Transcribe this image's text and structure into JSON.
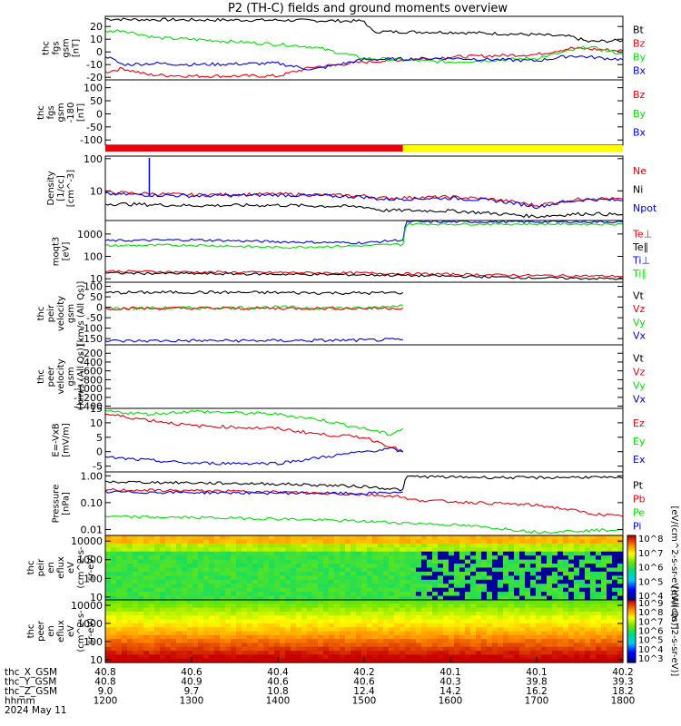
{
  "title": "P2 (TH-C) fields and ground moments overview",
  "colors": {
    "black": "#000000",
    "red": "#e8000b",
    "green": "#00e000",
    "blue": "#0000e0",
    "yellow": "#ffff00"
  },
  "chart_data": [
    {
      "type": "line",
      "ylabel_lines": [
        "thc",
        "fgs",
        "gsm",
        "[nT]"
      ],
      "yticks": [
        "20",
        "10",
        "0",
        "-10",
        "-20"
      ],
      "ylim": [
        -22,
        28
      ],
      "legend": [
        {
          "label": "Bt",
          "color": "black"
        },
        {
          "label": "Bz",
          "color": "red"
        },
        {
          "label": "By",
          "color": "green"
        },
        {
          "label": "Bx",
          "color": "blue"
        }
      ],
      "series": [
        {
          "name": "Bt",
          "color": "black",
          "x": [
            1200,
            1230,
            1300,
            1400,
            1500,
            1510,
            1600,
            1700,
            1740,
            1760,
            1800
          ],
          "y": [
            26,
            25.5,
            25.2,
            25,
            24.2,
            16,
            15.5,
            13.5,
            12,
            8,
            9
          ]
        },
        {
          "name": "Bz",
          "color": "red",
          "x": [
            1200,
            1220,
            1250,
            1300,
            1400,
            1440,
            1500,
            1600,
            1700,
            1740,
            1800
          ],
          "y": [
            -16,
            -13,
            -18,
            -19,
            -19,
            -12,
            -8,
            -4,
            -2,
            3,
            1
          ]
        },
        {
          "name": "By",
          "color": "green",
          "x": [
            1200,
            1220,
            1260,
            1300,
            1400,
            1440,
            1500,
            1600,
            1700,
            1760,
            1800
          ],
          "y": [
            16,
            17,
            11,
            10,
            6,
            4,
            -5,
            -8,
            -5,
            4,
            -2
          ]
        },
        {
          "name": "Bx",
          "color": "blue",
          "x": [
            1200,
            1220,
            1260,
            1300,
            1400,
            1440,
            1500,
            1600,
            1700,
            1740,
            1800
          ],
          "y": [
            -3,
            -10,
            -9,
            -10,
            -9,
            -14,
            -6,
            -5,
            -7,
            -3,
            -6
          ]
        }
      ]
    },
    {
      "type": "line",
      "ylabel_lines": [
        "thc",
        "fgs",
        "gsm",
        "-180",
        "[nT]"
      ],
      "yticks": [
        "100",
        "50",
        "0",
        "-50",
        "-100"
      ],
      "ylim": [
        -120,
        130
      ],
      "legend": [
        {
          "label": "Bz",
          "color": "red"
        },
        {
          "label": "By",
          "color": "green"
        },
        {
          "label": "Bx",
          "color": "blue"
        }
      ],
      "series": []
    },
    {
      "type": "line",
      "ylabel_lines": [
        "Density",
        "[1/cc]",
        "[cm^-3]"
      ],
      "yticks": [
        "100",
        "10"
      ],
      "yscale": "log",
      "ylim": [
        1.2,
        120
      ],
      "legend": [
        {
          "label": "Ne",
          "color": "red"
        },
        {
          "label": "Ni",
          "color": "black"
        },
        {
          "label": "Npot",
          "color": "blue"
        }
      ],
      "series": [
        {
          "name": "Ne",
          "color": "red",
          "x": [
            1200,
            1300,
            1400,
            1500,
            1520,
            1600,
            1650,
            1700,
            1760,
            1800
          ],
          "y": [
            9,
            7.5,
            8,
            7,
            6,
            6.5,
            5.5,
            3.5,
            6,
            5.5
          ]
        },
        {
          "name": "Npot",
          "color": "blue",
          "x": [
            1200,
            1300,
            1400,
            1500,
            1520,
            1600,
            1650,
            1700,
            1760,
            1800
          ],
          "y": [
            8,
            7,
            7.5,
            6.5,
            5.5,
            6,
            5,
            3.2,
            5.5,
            5
          ]
        },
        {
          "name": "Ni",
          "color": "black",
          "x": [
            1200,
            1300,
            1400,
            1500,
            1520,
            1600,
            1650,
            1700,
            1760,
            1800
          ],
          "y": [
            4,
            3.5,
            3.6,
            3.2,
            2.5,
            2.4,
            2.0,
            1.6,
            2.0,
            1.8
          ]
        }
      ]
    },
    {
      "type": "line",
      "ylabel_lines": [
        "moqt3",
        "[eV]"
      ],
      "yticks": [
        "1000",
        "100",
        "10"
      ],
      "yscale": "log",
      "ylim": [
        7,
        4000
      ],
      "legend": [
        {
          "label": "Te⊥",
          "color": "red"
        },
        {
          "label": "Te∥",
          "color": "black"
        },
        {
          "label": "Ti⊥",
          "color": "blue"
        },
        {
          "label": "Ti∥",
          "color": "green"
        }
      ],
      "series": [
        {
          "name": "Ti⊥",
          "color": "blue",
          "x": [
            1200,
            1300,
            1400,
            1500,
            1545,
            1550,
            1800
          ],
          "y": [
            500,
            550,
            450,
            400,
            550,
            3500,
            3500
          ]
        },
        {
          "name": "Ti∥",
          "color": "green",
          "x": [
            1200,
            1300,
            1400,
            1500,
            1545,
            1550,
            1800
          ],
          "y": [
            300,
            320,
            250,
            300,
            350,
            2800,
            2800
          ]
        },
        {
          "name": "Te⊥",
          "color": "red",
          "x": [
            1200,
            1300,
            1400,
            1500,
            1600,
            1700,
            1800
          ],
          "y": [
            22,
            20,
            19,
            18,
            16,
            14,
            13
          ]
        },
        {
          "name": "Te∥",
          "color": "black",
          "x": [
            1200,
            1300,
            1400,
            1500,
            1600,
            1700,
            1800
          ],
          "y": [
            18,
            17,
            16,
            15,
            13,
            11,
            10
          ]
        }
      ]
    },
    {
      "type": "line",
      "ylabel_lines": [
        "thc",
        "peir",
        "velocity",
        "gsm",
        "[km/s (All Qs)]"
      ],
      "yticks": [
        "100",
        "50",
        "0",
        "-50",
        "-100",
        "-150"
      ],
      "ylim": [
        -180,
        120
      ],
      "legend": [
        {
          "label": "Vt",
          "color": "black"
        },
        {
          "label": "Vz",
          "color": "red"
        },
        {
          "label": "Vy",
          "color": "green"
        },
        {
          "label": "Vx",
          "color": "blue"
        }
      ],
      "series": [
        {
          "name": "Vt",
          "color": "black",
          "x": [
            1200,
            1300,
            1400,
            1500,
            1545
          ],
          "y": [
            70,
            72,
            70,
            68,
            70
          ]
        },
        {
          "name": "Vy",
          "color": "green",
          "x": [
            1200,
            1300,
            1400,
            1500,
            1530,
            1545
          ],
          "y": [
            -5,
            -3,
            0,
            -5,
            5,
            10
          ]
        },
        {
          "name": "Vz",
          "color": "red",
          "x": [
            1200,
            1300,
            1400,
            1500,
            1545
          ],
          "y": [
            -5,
            -5,
            -5,
            -5,
            -3
          ]
        },
        {
          "name": "Vx",
          "color": "blue",
          "x": [
            1200,
            1300,
            1400,
            1500,
            1545
          ],
          "y": [
            -162,
            -160,
            -160,
            -158,
            -155
          ]
        }
      ]
    },
    {
      "type": "line",
      "ylabel_lines": [
        "thc",
        "peer",
        "velocity",
        "gsm",
        "[km/s (All Qs)]"
      ],
      "yticks": [
        "-200",
        "-400",
        "-600",
        "-800",
        "-1000",
        "-1200",
        "-1400"
      ],
      "ylim": [
        -1450,
        -10
      ],
      "legend": [
        {
          "label": "Vt",
          "color": "black"
        },
        {
          "label": "Vz",
          "color": "red"
        },
        {
          "label": "Vy",
          "color": "green"
        },
        {
          "label": "Vx",
          "color": "blue"
        }
      ],
      "series": []
    },
    {
      "type": "line",
      "ylabel_lines": [
        "E=-VxB",
        "[mV/m]"
      ],
      "yticks": [
        "15",
        "10",
        "5",
        "0",
        "-5"
      ],
      "ylim": [
        -7,
        15
      ],
      "legend": [
        {
          "label": "Ez",
          "color": "red"
        },
        {
          "label": "Ey",
          "color": "green"
        },
        {
          "label": "Ex",
          "color": "blue"
        }
      ],
      "series": [
        {
          "name": "Ey",
          "color": "green",
          "x": [
            1200,
            1250,
            1300,
            1400,
            1450,
            1500,
            1530,
            1545
          ],
          "y": [
            14,
            13,
            14,
            13,
            11,
            8,
            6,
            8
          ]
        },
        {
          "name": "Ez",
          "color": "red",
          "x": [
            1200,
            1250,
            1300,
            1400,
            1450,
            1500,
            1530,
            1545
          ],
          "y": [
            13,
            11,
            9,
            8,
            6,
            5,
            2,
            0
          ]
        },
        {
          "name": "Ex",
          "color": "blue",
          "x": [
            1200,
            1250,
            1300,
            1400,
            1450,
            1500,
            1530,
            1545
          ],
          "y": [
            -2,
            -3,
            -4,
            -4,
            -2,
            0,
            1,
            0
          ]
        }
      ]
    },
    {
      "type": "line",
      "ylabel_lines": [
        "Pressure",
        "[nPa]"
      ],
      "yticks": [
        "1.00",
        "0.10",
        "0.01"
      ],
      "yscale": "log",
      "ylim": [
        0.006,
        1.4
      ],
      "legend": [
        {
          "label": "Pt",
          "color": "black"
        },
        {
          "label": "Pb",
          "color": "red"
        },
        {
          "label": "Pe",
          "color": "green"
        },
        {
          "label": "Pi",
          "color": "blue"
        }
      ],
      "series": [
        {
          "name": "Pt",
          "color": "black",
          "x": [
            1200,
            1300,
            1400,
            1500,
            1545,
            1550,
            1600,
            1700,
            1760,
            1800
          ],
          "y": [
            0.6,
            0.55,
            0.5,
            0.4,
            0.3,
            0.95,
            0.9,
            0.85,
            0.9,
            0.8
          ]
        },
        {
          "name": "Pb",
          "color": "red",
          "x": [
            1200,
            1300,
            1400,
            1500,
            1545,
            1550,
            1600,
            1700,
            1760,
            1800
          ],
          "y": [
            0.3,
            0.28,
            0.25,
            0.2,
            0.17,
            0.13,
            0.11,
            0.08,
            0.04,
            0.03
          ]
        },
        {
          "name": "Pi",
          "color": "blue",
          "x": [
            1200,
            1300,
            1400,
            1500,
            1545
          ],
          "y": [
            0.25,
            0.24,
            0.23,
            0.22,
            0.25
          ]
        },
        {
          "name": "Pe",
          "color": "green",
          "x": [
            1200,
            1300,
            1400,
            1500,
            1600,
            1700,
            1800
          ],
          "y": [
            0.03,
            0.028,
            0.025,
            0.02,
            0.015,
            0.008,
            0.01
          ]
        }
      ]
    },
    {
      "type": "heatmap",
      "ylabel_lines": [
        "thc",
        "peir",
        "en",
        "eflux",
        "eV",
        "(cm^2-s-",
        "sr-eV)"
      ],
      "yticks": [
        "10000",
        "1000",
        "100",
        "10"
      ],
      "yscale": "log",
      "ylim": [
        7,
        20000
      ],
      "colorbar_ticks": [
        "10^8",
        "10^7",
        "10^6",
        "10^5",
        "10^4"
      ],
      "colorbar_label": "[eV/(cm^2-s-sr-eV)(All Qs)]"
    },
    {
      "type": "heatmap",
      "ylabel_lines": [
        "thc",
        "peer",
        "en",
        "eflux",
        "eV",
        "(cm^2-s-",
        "sr-eV)"
      ],
      "yticks": [
        "10000",
        "1000",
        "100",
        "10"
      ],
      "yscale": "log",
      "ylim": [
        7,
        20000
      ],
      "colorbar_ticks": [
        "10^9",
        "10^8",
        "10^7",
        "10^6",
        "10^5",
        "10^4",
        "10^3"
      ],
      "colorbar_label": "[eV/(cm^2-s-sr-eV)]"
    }
  ],
  "x_axis": {
    "hhmm_values": [
      "1200",
      "1300",
      "1400",
      "1500",
      "1600",
      "1700",
      "1800"
    ],
    "xlim": [
      1200,
      1800
    ],
    "rows": [
      {
        "label": "thc_X_GSM",
        "values": [
          "40.8",
          "40.6",
          "40.4",
          "40.2",
          "40.1",
          "40.1",
          "40.2"
        ]
      },
      {
        "label": "thc_Y_GSM",
        "values": [
          "40.8",
          "40.9",
          "40.6",
          "40.6",
          "40.3",
          "39.8",
          "39.3"
        ]
      },
      {
        "label": "thc_Z_GSM",
        "values": [
          "9.0",
          "9.7",
          "10.8",
          "12.4",
          "14.2",
          "16.2",
          "18.2"
        ]
      },
      {
        "label": "hhmm",
        "values": [
          "1200",
          "1300",
          "1400",
          "1500",
          "1600",
          "1700",
          "1800"
        ]
      }
    ],
    "date": "2024 May 11"
  }
}
